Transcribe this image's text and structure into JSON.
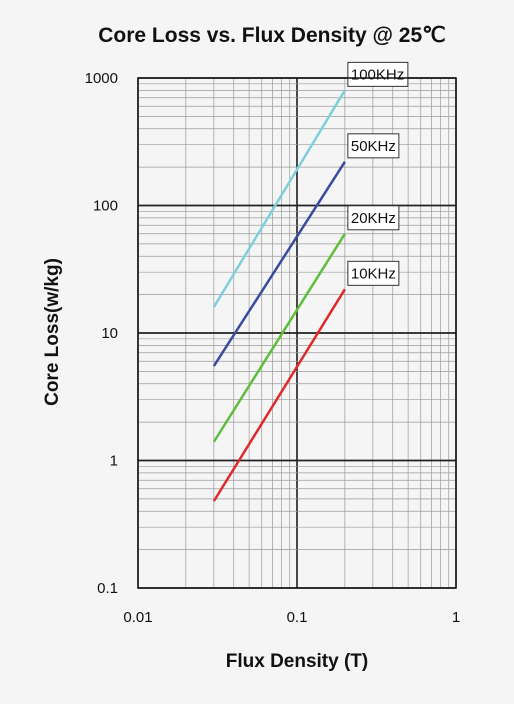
{
  "chart_data": {
    "type": "line",
    "title": "Core Loss vs. Flux Density @ 25℃",
    "xlabel": "Flux Density (T)",
    "ylabel": "Core Loss(w/kg)",
    "x_scale": "log",
    "y_scale": "log",
    "xlim": [
      0.01,
      1
    ],
    "ylim": [
      0.1,
      1000
    ],
    "x_ticks": [
      "0.01",
      "0.1",
      "1"
    ],
    "y_ticks": [
      "0.1",
      "1",
      "10",
      "100",
      "1000"
    ],
    "grid": true,
    "series": [
      {
        "name": "100KHz",
        "color": "#7ecfdc",
        "x": [
          0.03,
          0.2
        ],
        "y": [
          16,
          800
        ]
      },
      {
        "name": "50KHz",
        "color": "#3a4aa0",
        "x": [
          0.03,
          0.2
        ],
        "y": [
          5.5,
          220
        ]
      },
      {
        "name": "20KHz",
        "color": "#5cbf3c",
        "x": [
          0.03,
          0.2
        ],
        "y": [
          1.4,
          60
        ]
      },
      {
        "name": "10KHz",
        "color": "#e02a2a",
        "x": [
          0.03,
          0.2
        ],
        "y": [
          0.48,
          22
        ]
      }
    ]
  }
}
